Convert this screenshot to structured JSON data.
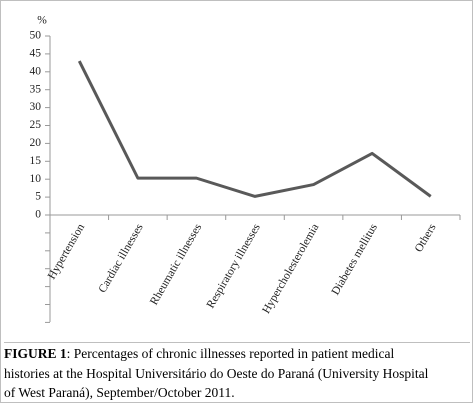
{
  "chart_data": {
    "type": "line",
    "y_label": "%",
    "categories": [
      "Hypertension",
      "Cardiac illnesses",
      "Rheumatic illnesses",
      "Respiratory illnesses",
      "Hypercholesterolemia",
      "Diabetes mellitus",
      "Others"
    ],
    "values": [
      43,
      10.3,
      10.3,
      5.2,
      8.5,
      17.2,
      5.2
    ],
    "color": "#595959",
    "ylim": [
      0,
      50
    ],
    "yticks": [
      0,
      5,
      10,
      15,
      20,
      25,
      30,
      35,
      40,
      45,
      50
    ],
    "grid": false
  },
  "caption": {
    "label": "FIGURE 1",
    "lines": [
      ": Percentages of chronic illnesses reported in patient medical",
      "histories at the Hospital Universitário do Oeste do Paraná (University Hospital",
      "of West Paraná), September/October 2011."
    ]
  }
}
